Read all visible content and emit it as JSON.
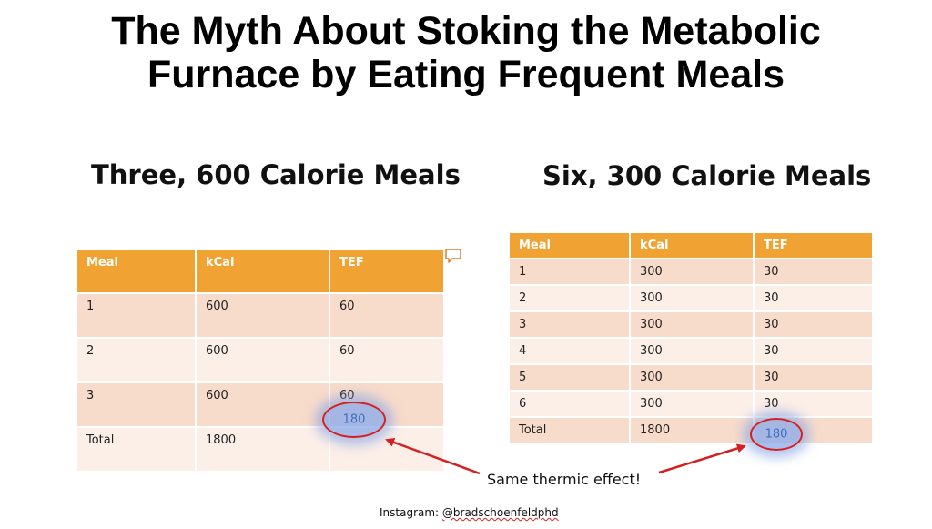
{
  "title": {
    "line1": "The Myth About Stoking the Metabolic",
    "line2": "Furnace by Eating Frequent Meals"
  },
  "left": {
    "heading": "Three, 600 Calorie Meals",
    "columns": [
      "Meal",
      "kCal",
      "TEF"
    ],
    "rows": [
      [
        "1",
        "600",
        "60"
      ],
      [
        "2",
        "600",
        "60"
      ],
      [
        "3",
        "600",
        "60"
      ]
    ],
    "total": [
      "Total",
      "1800",
      "180"
    ]
  },
  "right": {
    "heading": "Six, 300 Calorie Meals",
    "columns": [
      "Meal",
      "kCal",
      "TEF"
    ],
    "rows": [
      [
        "1",
        "300",
        "30"
      ],
      [
        "2",
        "300",
        "30"
      ],
      [
        "3",
        "300",
        "30"
      ],
      [
        "4",
        "300",
        "30"
      ],
      [
        "5",
        "300",
        "30"
      ],
      [
        "6",
        "300",
        "30"
      ]
    ],
    "total": [
      "Total",
      "1800",
      "180"
    ]
  },
  "annotation": "Same thermic effect!",
  "credit": {
    "prefix": "Instagram: ",
    "handle": "@bradschoenfeldphd"
  },
  "colors": {
    "header": "#f0a232",
    "row_odd": "#f8dccb",
    "row_even": "#fcefe8",
    "arrow": "#d42020",
    "highlight": "#3a6fc6"
  }
}
